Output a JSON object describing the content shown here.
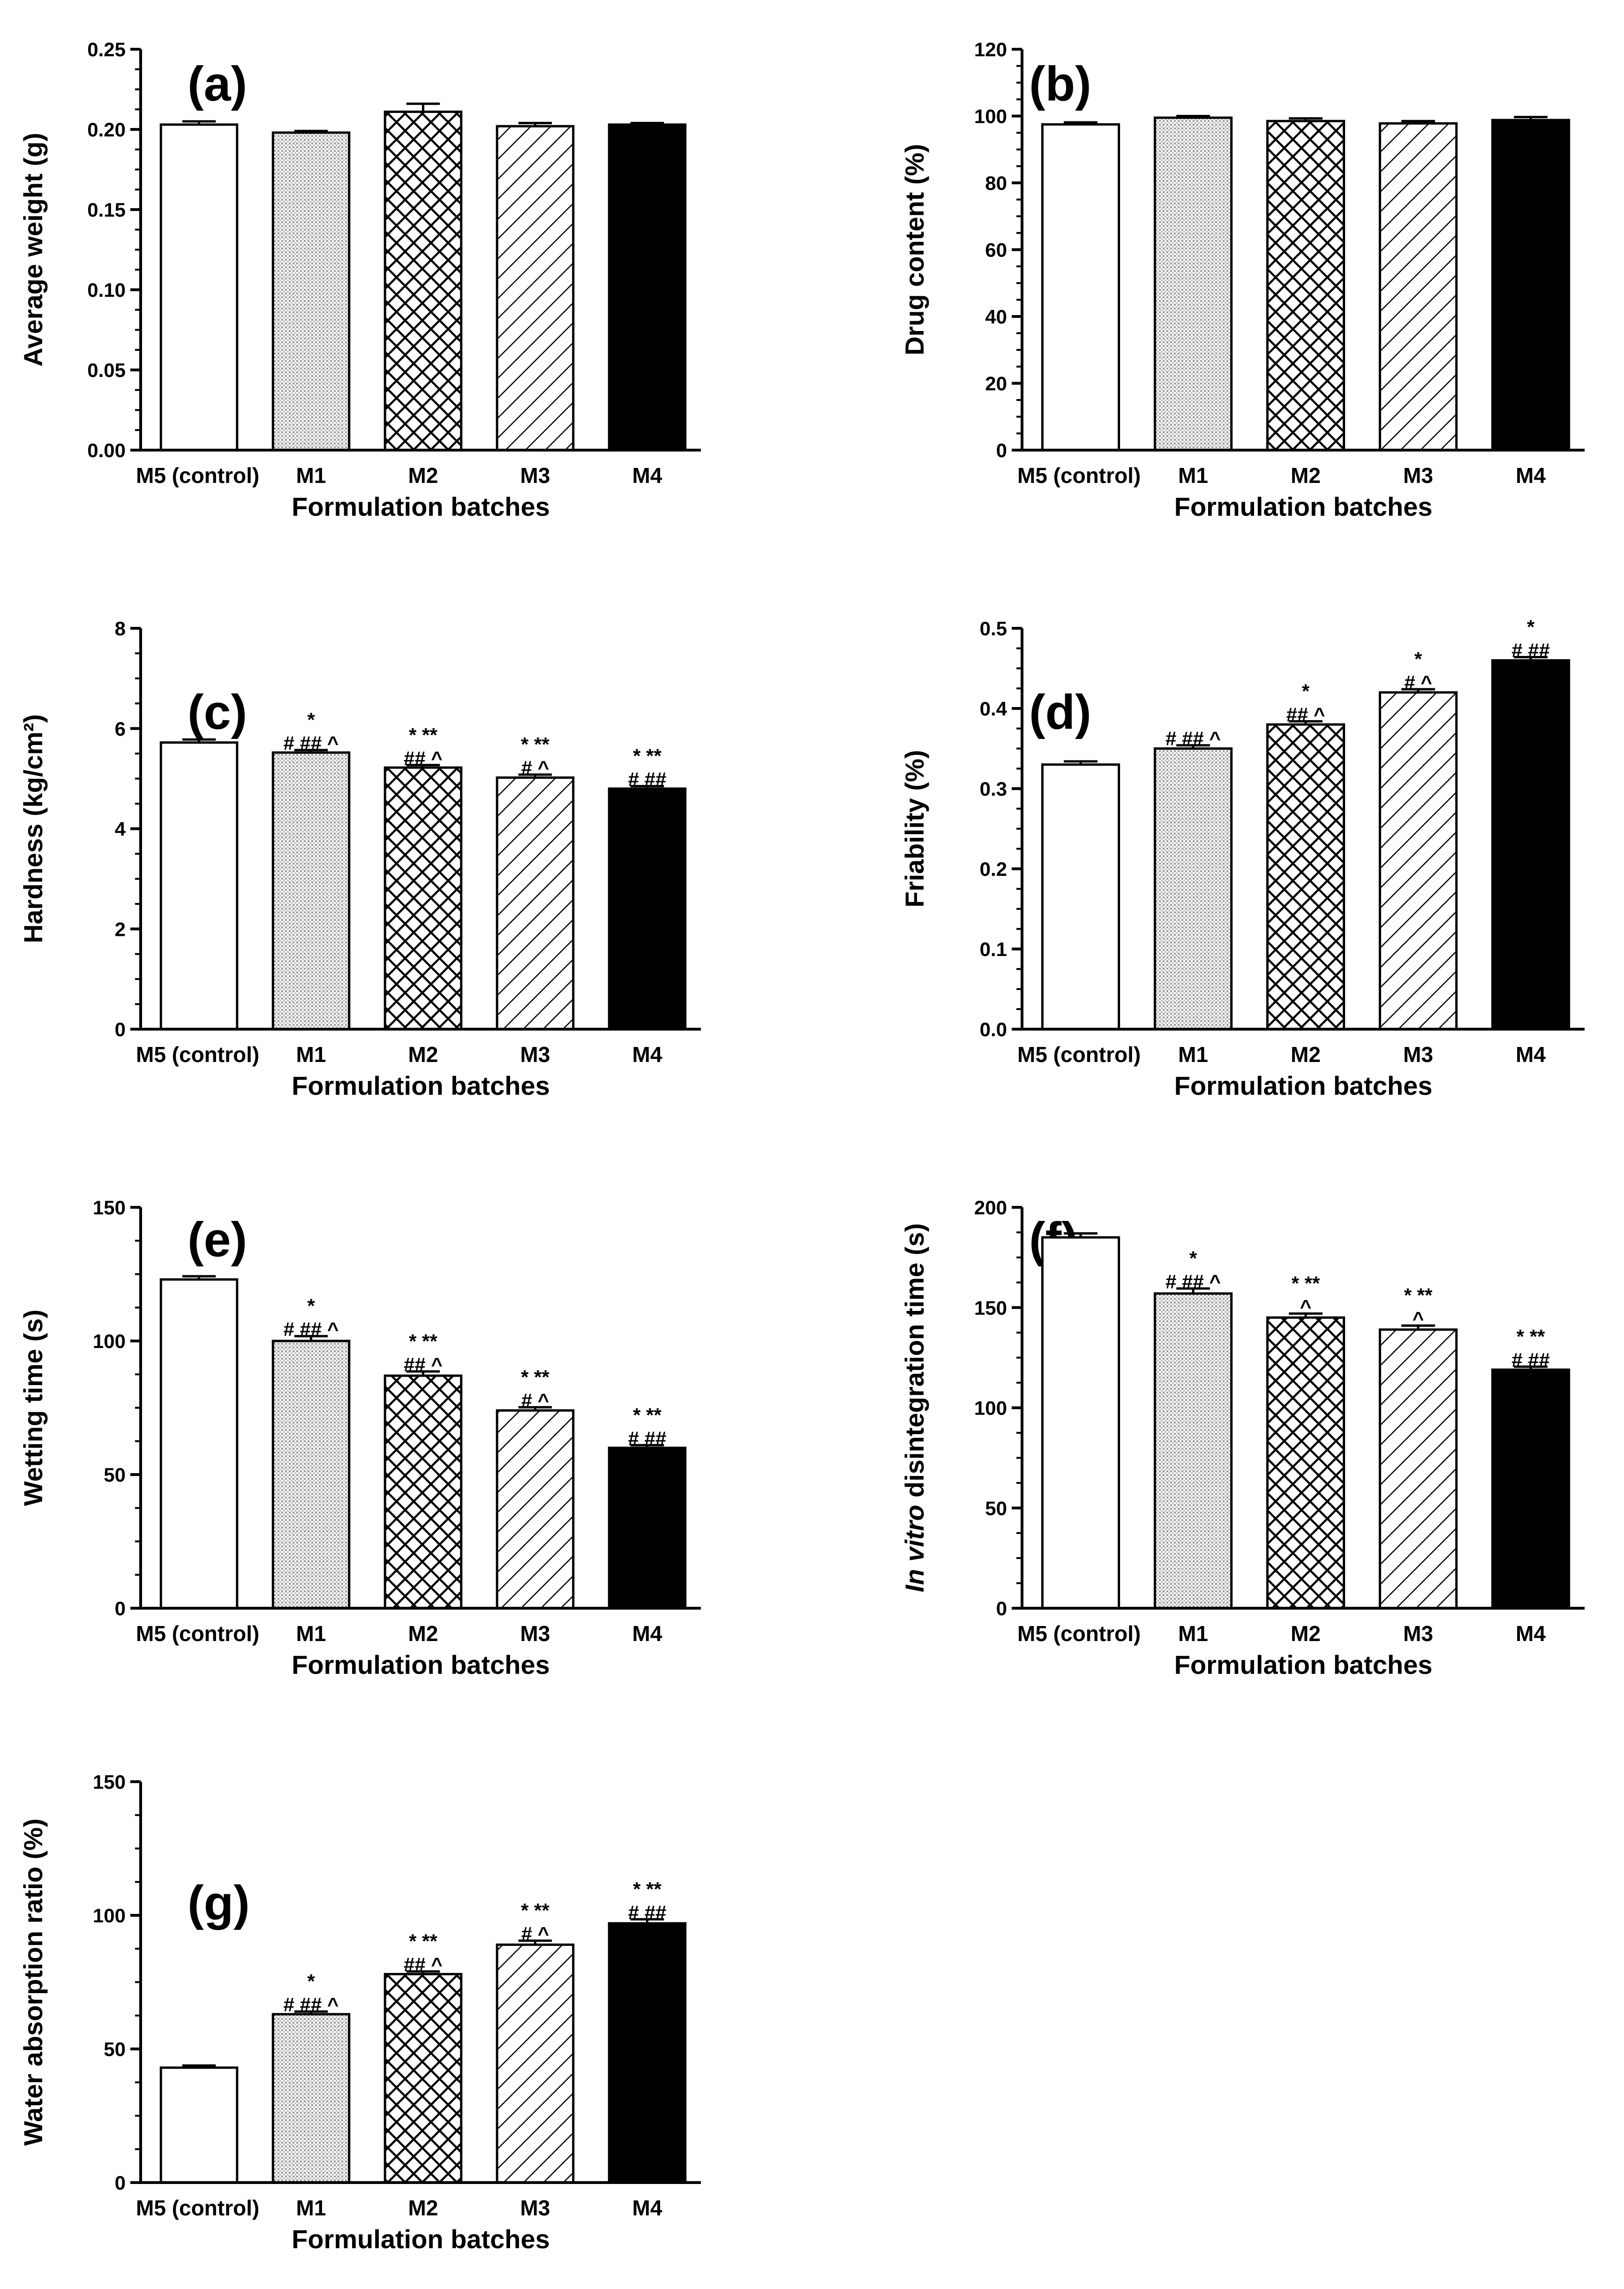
{
  "chart_data": [
    {
      "type": "bar",
      "panel": "(a)",
      "ylabel": "Average weight (g)",
      "ylabel_italic": "",
      "xlabel": "Formulation batches",
      "categories": [
        "M5 (control)",
        "M1",
        "M2",
        "M3",
        "M4"
      ],
      "values": [
        0.203,
        0.198,
        0.211,
        0.202,
        0.203
      ],
      "errors": [
        0.002,
        0.001,
        0.005,
        0.002,
        0.001
      ],
      "ylim": [
        0,
        0.25
      ],
      "yticks": [
        0,
        0.05,
        0.1,
        0.15,
        0.2,
        0.25
      ],
      "ytick_labels": [
        "0.00",
        "0.05",
        "0.10",
        "0.15",
        "0.20",
        "0.25"
      ],
      "annotations": [
        [],
        [],
        [],
        [],
        []
      ]
    },
    {
      "type": "bar",
      "panel": "(b)",
      "ylabel": "Drug content (%)",
      "ylabel_italic": "",
      "xlabel": "Formulation batches",
      "categories": [
        "M5 (control)",
        "M1",
        "M2",
        "M3",
        "M4"
      ],
      "values": [
        97.5,
        99.5,
        98.5,
        97.8,
        98.8
      ],
      "errors": [
        0.6,
        0.5,
        0.8,
        0.7,
        0.9
      ],
      "ylim": [
        0,
        120
      ],
      "yticks": [
        0,
        20,
        40,
        60,
        80,
        100,
        120
      ],
      "ytick_labels": [
        "0",
        "20",
        "40",
        "60",
        "80",
        "100",
        "120"
      ],
      "annotations": [
        [],
        [],
        [],
        [],
        []
      ]
    },
    {
      "type": "bar",
      "panel": "(c)",
      "ylabel": "Hardness (kg/cm²)",
      "ylabel_italic": "",
      "xlabel": "Formulation batches",
      "categories": [
        "M5 (control)",
        "M1",
        "M2",
        "M3",
        "M4"
      ],
      "values": [
        5.72,
        5.52,
        5.22,
        5.02,
        4.8
      ],
      "errors": [
        0.06,
        0.05,
        0.05,
        0.06,
        0.05
      ],
      "ylim": [
        0,
        8
      ],
      "yticks": [
        0,
        2,
        4,
        6,
        8
      ],
      "ytick_labels": [
        "0",
        "2",
        "4",
        "6",
        "8"
      ],
      "annotations": [
        [],
        [
          "*",
          "# ## ^"
        ],
        [
          "* **",
          "## ^"
        ],
        [
          "* **",
          "# ^"
        ],
        [
          "* **",
          "# ##"
        ]
      ]
    },
    {
      "type": "bar",
      "panel": "(d)",
      "ylabel": "Friability (%)",
      "ylabel_italic": "",
      "xlabel": "Formulation batches",
      "categories": [
        "M5 (control)",
        "M1",
        "M2",
        "M3",
        "M4"
      ],
      "values": [
        0.33,
        0.35,
        0.38,
        0.42,
        0.46
      ],
      "errors": [
        0.004,
        0.004,
        0.004,
        0.004,
        0.004
      ],
      "ylim": [
        0,
        0.5
      ],
      "yticks": [
        0,
        0.1,
        0.2,
        0.3,
        0.4,
        0.5
      ],
      "ytick_labels": [
        "0.0",
        "0.1",
        "0.2",
        "0.3",
        "0.4",
        "0.5"
      ],
      "annotations": [
        [],
        [
          "# ## ^"
        ],
        [
          "*",
          "## ^"
        ],
        [
          "*",
          "# ^"
        ],
        [
          "*",
          "# ##"
        ]
      ]
    },
    {
      "type": "bar",
      "panel": "(e)",
      "ylabel": "Wetting time (s)",
      "ylabel_italic": "",
      "xlabel": "Formulation batches",
      "categories": [
        "M5 (control)",
        "M1",
        "M2",
        "M3",
        "M4"
      ],
      "values": [
        123,
        100,
        87,
        74,
        60
      ],
      "errors": [
        1.2,
        1.8,
        1.6,
        1.2,
        1.0
      ],
      "ylim": [
        0,
        150
      ],
      "yticks": [
        0,
        50,
        100,
        150
      ],
      "ytick_labels": [
        "0",
        "50",
        "100",
        "150"
      ],
      "annotations": [
        [],
        [
          "*",
          "# ## ^"
        ],
        [
          "* **",
          "## ^"
        ],
        [
          "* **",
          "# ^"
        ],
        [
          "* **",
          "# ##"
        ]
      ]
    },
    {
      "type": "bar",
      "panel": "(f)",
      "ylabel": " disintegration time (s)",
      "ylabel_italic": "In vitro",
      "xlabel": "Formulation batches",
      "categories": [
        "M5 (control)",
        "M1",
        "M2",
        "M3",
        "M4"
      ],
      "values": [
        185,
        157,
        145,
        139,
        119
      ],
      "errors": [
        2.0,
        2.5,
        2.0,
        2.0,
        1.5
      ],
      "ylim": [
        0,
        200
      ],
      "yticks": [
        0,
        50,
        100,
        150,
        200
      ],
      "ytick_labels": [
        "0",
        "50",
        "100",
        "150",
        "200"
      ],
      "annotations": [
        [],
        [
          "*",
          "# ## ^"
        ],
        [
          "* **",
          "^"
        ],
        [
          "* **",
          "^"
        ],
        [
          "* **",
          "# ##"
        ]
      ]
    },
    {
      "type": "bar",
      "panel": "(g)",
      "ylabel": "Water absorption ratio (%)",
      "ylabel_italic": "",
      "xlabel": "Formulation batches",
      "categories": [
        "M5 (control)",
        "M1",
        "M2",
        "M3",
        "M4"
      ],
      "values": [
        43,
        63,
        78,
        89,
        97
      ],
      "errors": [
        0.8,
        1.0,
        1.0,
        1.5,
        1.5
      ],
      "ylim": [
        0,
        150
      ],
      "yticks": [
        0,
        50,
        100,
        150
      ],
      "ytick_labels": [
        "0",
        "50",
        "100",
        "150"
      ],
      "annotations": [
        [],
        [
          "*",
          "# ## ^"
        ],
        [
          "* **",
          "## ^"
        ],
        [
          "* **",
          "# ^"
        ],
        [
          "* **",
          "# ##"
        ]
      ]
    }
  ]
}
